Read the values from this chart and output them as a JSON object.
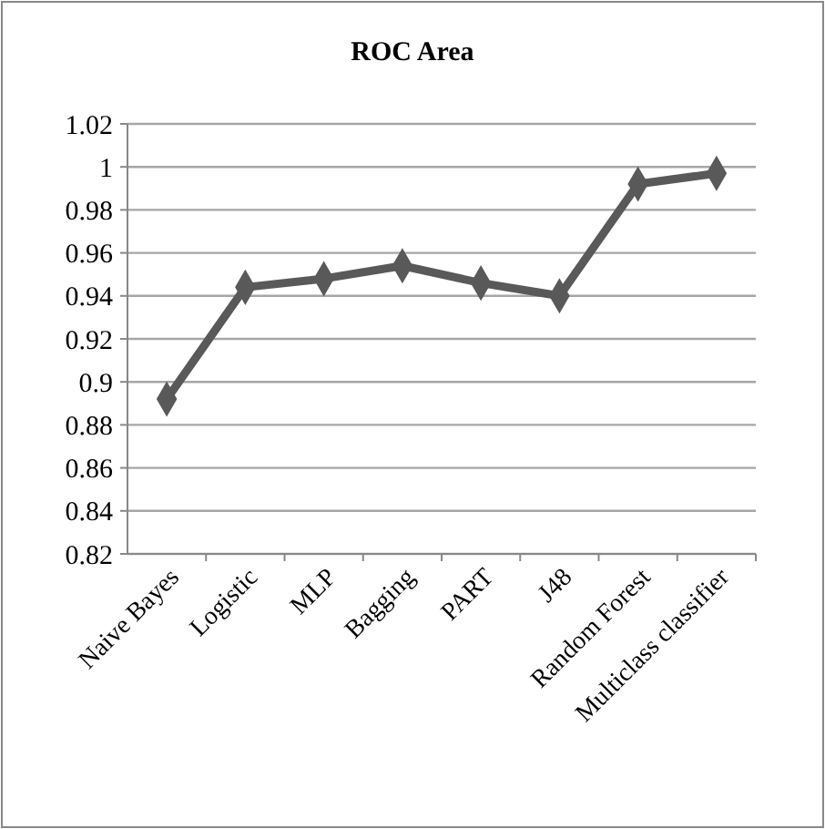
{
  "chart_data": {
    "type": "line",
    "title": "ROC Area",
    "categories": [
      "Naive Bayes",
      "Logistic",
      "MLP",
      "Bagging",
      "PART",
      "J48",
      "Random Forest",
      "Multiclass classifier"
    ],
    "series": [
      {
        "color": "#595959",
        "values": [
          0.892,
          0.944,
          0.948,
          0.954,
          0.946,
          0.94,
          0.992,
          0.997
        ]
      }
    ],
    "ylim": [
      0.82,
      1.02
    ],
    "yticks": [
      {
        "value": 0.82,
        "label": "0.82"
      },
      {
        "value": 0.84,
        "label": "0.84"
      },
      {
        "value": 0.86,
        "label": "0.86"
      },
      {
        "value": 0.88,
        "label": "0.88"
      },
      {
        "value": 0.9,
        "label": "0.9"
      },
      {
        "value": 0.92,
        "label": "0.92"
      },
      {
        "value": 0.94,
        "label": "0.94"
      },
      {
        "value": 0.96,
        "label": "0.96"
      },
      {
        "value": 0.98,
        "label": "0.98"
      },
      {
        "value": 1,
        "label": "1"
      },
      {
        "value": 1.02,
        "label": "1.02"
      }
    ],
    "grid": "y",
    "marker": "diamond",
    "line_style": "solid"
  }
}
